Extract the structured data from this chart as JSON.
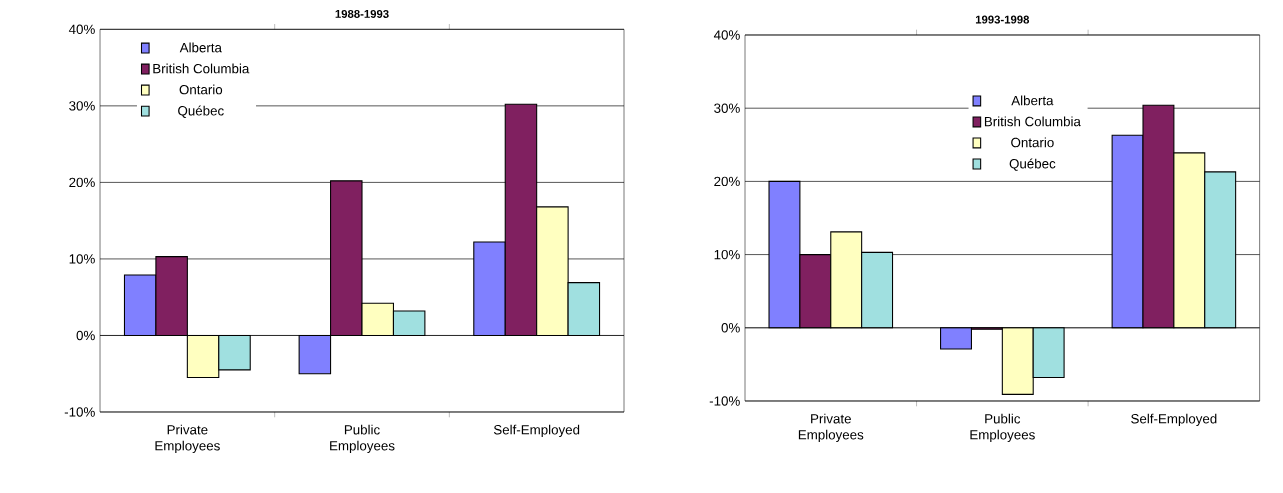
{
  "chart_data": [
    {
      "type": "bar",
      "title": "1988-1993",
      "categories": [
        "Private Employees",
        "Public Employees",
        "Self-Employed"
      ],
      "series": [
        {
          "name": "Alberta",
          "color": "#8080ff",
          "values": [
            7.9,
            -5.0,
            12.2
          ]
        },
        {
          "name": "British Columbia",
          "color": "#802060",
          "values": [
            10.3,
            20.2,
            30.2
          ]
        },
        {
          "name": "Ontario",
          "color": "#ffffc0",
          "values": [
            -5.5,
            4.2,
            16.8
          ]
        },
        {
          "name": "Québec",
          "color": "#a0e0e0",
          "values": [
            -4.5,
            3.2,
            6.9
          ]
        }
      ],
      "ylim": [
        -10,
        40
      ],
      "yticks": [
        {
          "value": -10,
          "label": "-10%"
        },
        {
          "value": 0,
          "label": "0%"
        },
        {
          "value": 10,
          "label": "10%"
        },
        {
          "value": 20,
          "label": "20%"
        },
        {
          "value": 30,
          "label": "30%"
        },
        {
          "value": 40,
          "label": "40%"
        }
      ],
      "grid": "y",
      "legend": "top left"
    },
    {
      "type": "bar",
      "title": "1993-1998",
      "categories": [
        "Private Employees",
        "Public Employees",
        "Self-Employed"
      ],
      "series": [
        {
          "name": "Alberta",
          "color": "#8080ff",
          "values": [
            20.0,
            -2.9,
            26.3
          ]
        },
        {
          "name": "British Columbia",
          "color": "#802060",
          "values": [
            10.0,
            -0.2,
            30.4
          ]
        },
        {
          "name": "Ontario",
          "color": "#ffffc0",
          "values": [
            13.1,
            -9.1,
            23.9
          ]
        },
        {
          "name": "Québec",
          "color": "#a0e0e0",
          "values": [
            10.3,
            -6.8,
            21.3
          ]
        }
      ],
      "ylim": [
        -10,
        40
      ],
      "yticks": [
        {
          "value": -10,
          "label": "-10%"
        },
        {
          "value": 0,
          "label": "0%"
        },
        {
          "value": 10,
          "label": "10%"
        },
        {
          "value": 20,
          "label": "20%"
        },
        {
          "value": 30,
          "label": "30%"
        },
        {
          "value": 40,
          "label": "40%"
        }
      ],
      "grid": "y",
      "legend": "top"
    }
  ]
}
